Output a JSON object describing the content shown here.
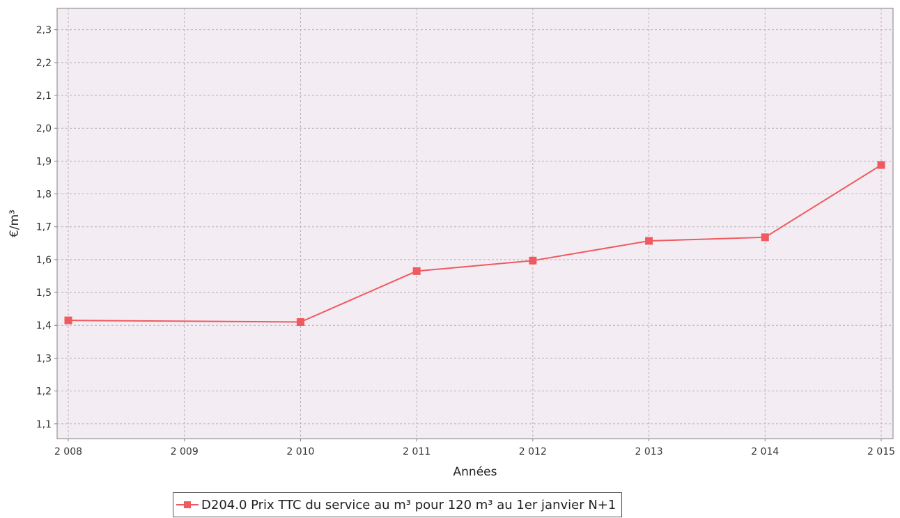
{
  "chart_data": {
    "type": "line",
    "x": [
      "2 008",
      "2 009",
      "2 010",
      "2 011",
      "2 012",
      "2 013",
      "2 014",
      "2 015"
    ],
    "series": [
      {
        "name": "D204.0 Prix TTC du service au m³ pour 120 m³ au 1er janvier N+1",
        "points": [
          {
            "x": "2 008",
            "y": 1.415
          },
          {
            "x": "2 010",
            "y": 1.41
          },
          {
            "x": "2 011",
            "y": 1.565
          },
          {
            "x": "2 012",
            "y": 1.597
          },
          {
            "x": "2 013",
            "y": 1.657
          },
          {
            "x": "2 014",
            "y": 1.668
          },
          {
            "x": "2 015",
            "y": 1.888
          }
        ]
      }
    ],
    "yticks": [
      "1,1",
      "1,2",
      "1,3",
      "1,4",
      "1,5",
      "1,6",
      "1,7",
      "1,8",
      "1,9",
      "2,0",
      "2,1",
      "2,2",
      "2,3"
    ],
    "ylim": [
      1.055,
      2.365
    ],
    "xlabel": "Années",
    "ylabel": "€/m³",
    "grid": true,
    "legend_position": "bottom",
    "colors": {
      "series": "#f05a5e",
      "plot_background": "#f3ecf3",
      "grid": "#b8b0b8"
    }
  }
}
